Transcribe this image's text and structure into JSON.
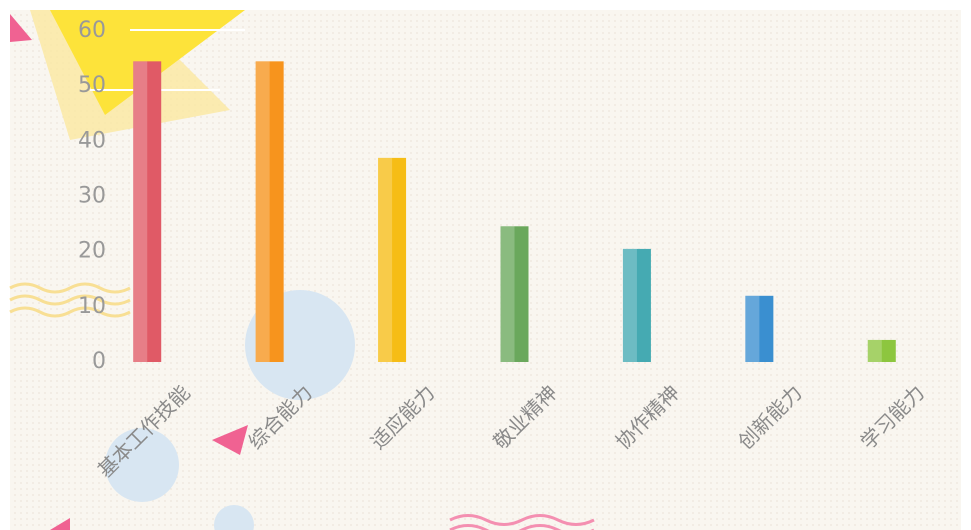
{
  "chart_data": {
    "type": "bar",
    "categories": [
      "基本工作技能",
      "综合能力",
      "适应能力",
      "敬业精神",
      "协作精神",
      "创新能力",
      "学习能力"
    ],
    "values": [
      54.5,
      54.5,
      37,
      24.6,
      20.5,
      12,
      4
    ],
    "colors": [
      "#e05a66",
      "#f7941d",
      "#f6bd16",
      "#6aa85c",
      "#45aab2",
      "#3a8fd0",
      "#8dc63f"
    ],
    "ylim": [
      0,
      60
    ],
    "yticks": [
      0,
      10,
      20,
      30,
      40,
      50,
      60
    ],
    "grid": false
  }
}
